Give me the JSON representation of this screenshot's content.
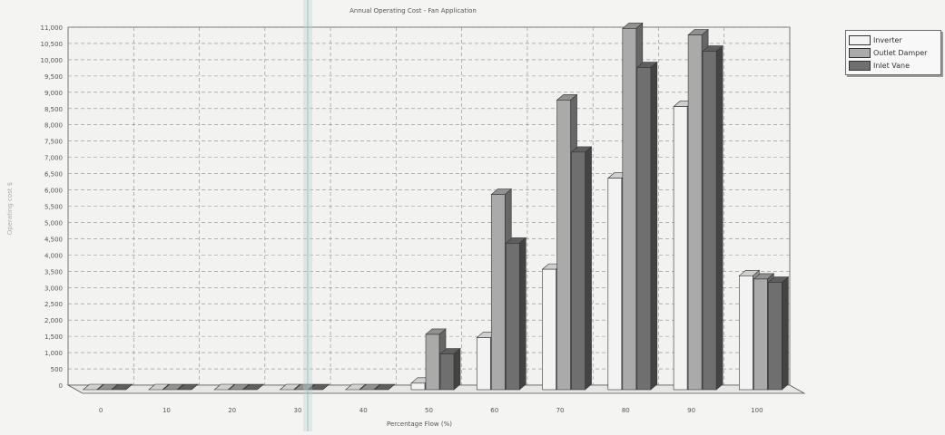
{
  "chart_data": {
    "type": "bar",
    "title": "Annual Operating Cost - Fan Application",
    "xlabel": "Percentage Flow (%)",
    "ylabel": "Operating cost $",
    "categories": [
      "0",
      "10",
      "20",
      "30",
      "40",
      "50",
      "60",
      "70",
      "80",
      "90",
      "100"
    ],
    "series": [
      {
        "name": "Inverter",
        "values": [
          0,
          0,
          0,
          0,
          0,
          200,
          1600,
          3700,
          6500,
          8700,
          3500
        ]
      },
      {
        "name": "Outlet Damper",
        "values": [
          0,
          0,
          0,
          0,
          0,
          1700,
          6000,
          8900,
          11100,
          10900,
          3400
        ]
      },
      {
        "name": "Inlet Vane",
        "values": [
          0,
          0,
          0,
          0,
          0,
          1100,
          4500,
          7300,
          9900,
          10400,
          3300
        ]
      }
    ],
    "colors": [
      "#f3f3f3",
      "#aaaaaa",
      "#6f6f6f"
    ],
    "yticks": [
      500,
      1000,
      1500,
      2000,
      2500,
      3000,
      3500,
      4000,
      4500,
      5000,
      5500,
      6000,
      6500,
      7000,
      7500,
      8000,
      8500,
      9000,
      9500,
      10000,
      10500,
      11000
    ],
    "ytick_labels": [
      "500",
      "1,000",
      "1,500",
      "2,000",
      "2,500",
      "3,000",
      "3,500",
      "4,000",
      "4,500",
      "5,000",
      "5,500",
      "6,000",
      "6,500",
      "7,000",
      "7,500",
      "8,000",
      "8,500",
      "9,000",
      "9,500",
      "10,000",
      "10,500",
      "11,000"
    ],
    "zero_label": "0",
    "ylim": [
      0,
      11000
    ],
    "grid": true,
    "legend_position": "top-right"
  }
}
